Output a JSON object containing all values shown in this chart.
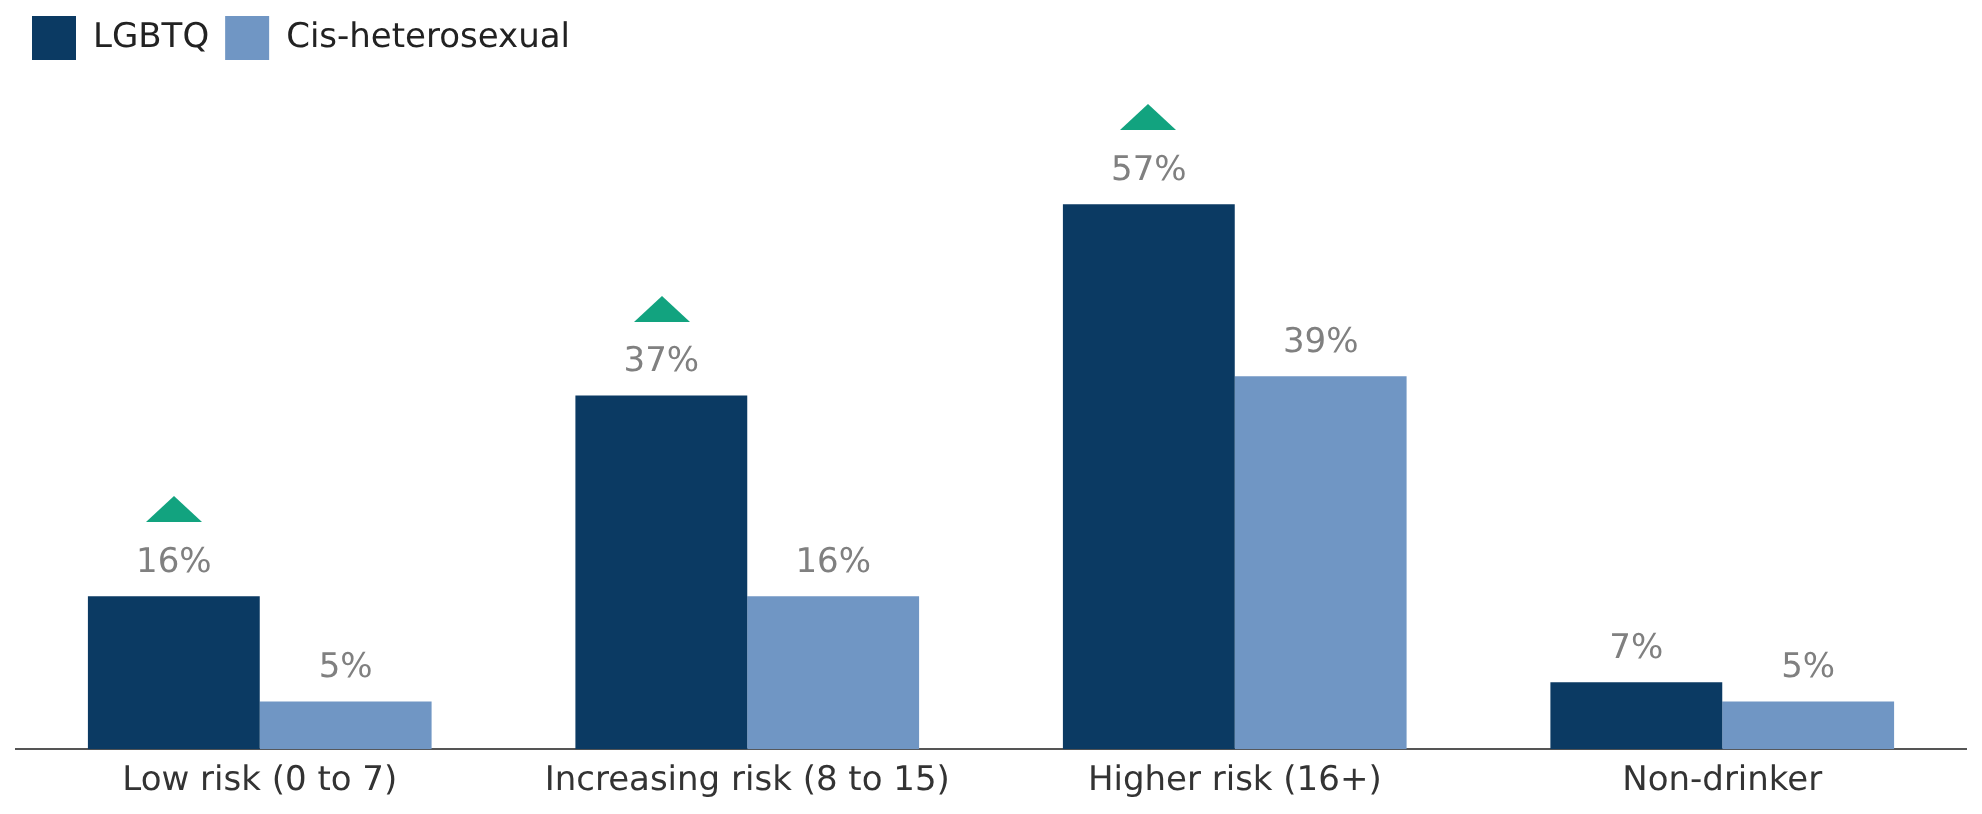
{
  "chart_data": {
    "type": "bar",
    "categories": [
      "Low risk (0 to 7)",
      "Increasing risk (8 to 15)",
      "Higher risk (16+)",
      "Non-drinker"
    ],
    "series": [
      {
        "name": "LGBTQ",
        "color": "#0b3a63",
        "values": [
          16,
          37,
          57,
          7
        ],
        "value_labels": [
          "16%",
          "37%",
          "57%",
          "7%"
        ]
      },
      {
        "name": "Cis-heterosexual",
        "color": "#7096c4",
        "values": [
          5,
          16,
          39,
          5
        ],
        "value_labels": [
          "5%",
          "16%",
          "39%",
          "5%"
        ]
      }
    ],
    "legend": "top left",
    "grid": false
  }
}
